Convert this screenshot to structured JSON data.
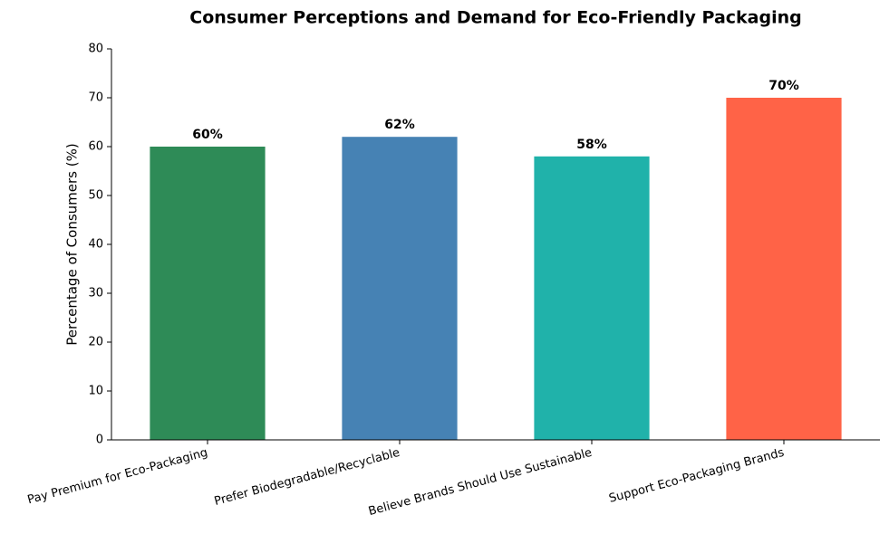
{
  "chart_data": {
    "type": "bar",
    "title": "Consumer Perceptions and Demand for Eco-Friendly Packaging",
    "ylabel": "Percentage of Consumers (%)",
    "categories": [
      "Pay Premium for Eco-Packaging",
      "Prefer Biodegradable/Recyclable",
      "Believe Brands Should Use Sustainable",
      "Support Eco-Packaging Brands"
    ],
    "values": [
      60,
      62,
      58,
      70
    ],
    "value_labels": [
      "60%",
      "62%",
      "58%",
      "70%"
    ],
    "colors": [
      "#2e8b57",
      "#4682b4",
      "#20b2aa",
      "#ff6347"
    ],
    "ylim": [
      0,
      80
    ],
    "yticks": [
      0,
      10,
      20,
      30,
      40,
      50,
      60,
      70,
      80
    ]
  }
}
